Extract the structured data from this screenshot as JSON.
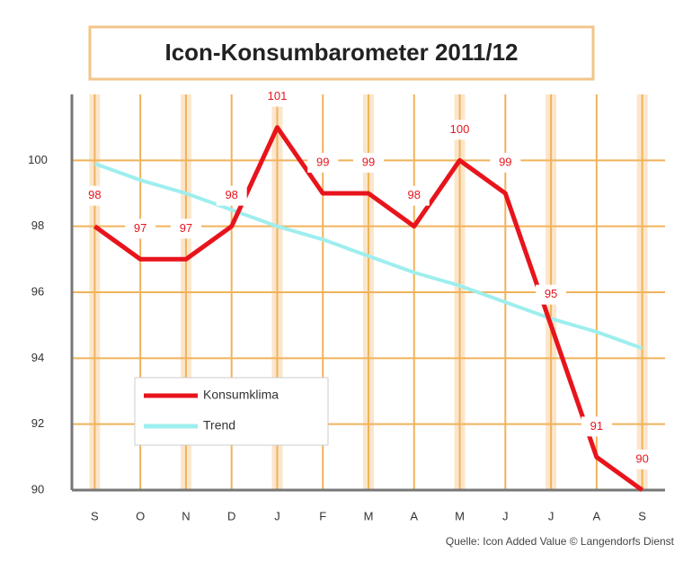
{
  "chart_data": {
    "type": "line",
    "title": "Icon-Konsumbarometer 2011/12",
    "source": "Quelle: Icon Added Value © Langendorfs Dienst",
    "categories": [
      "S",
      "O",
      "N",
      "D",
      "J",
      "F",
      "M",
      "A",
      "M",
      "J",
      "J",
      "A",
      "S"
    ],
    "series": [
      {
        "name": "Konsumklima",
        "color": "#e8141c",
        "values": [
          98,
          97,
          97,
          98,
          101,
          99,
          99,
          98,
          100,
          99,
          95,
          91,
          90
        ],
        "data_labels": true
      },
      {
        "name": "Trend",
        "color": "#9eeeee",
        "values": [
          99.9,
          99.4,
          99.0,
          98.5,
          98.0,
          97.6,
          97.1,
          96.6,
          96.2,
          95.7,
          95.2,
          94.8,
          94.3
        ],
        "data_labels": false
      }
    ],
    "ylim": [
      90,
      102
    ],
    "yticks": [
      90,
      92,
      94,
      96,
      98,
      100
    ],
    "grid": true,
    "legend": "lower left"
  }
}
